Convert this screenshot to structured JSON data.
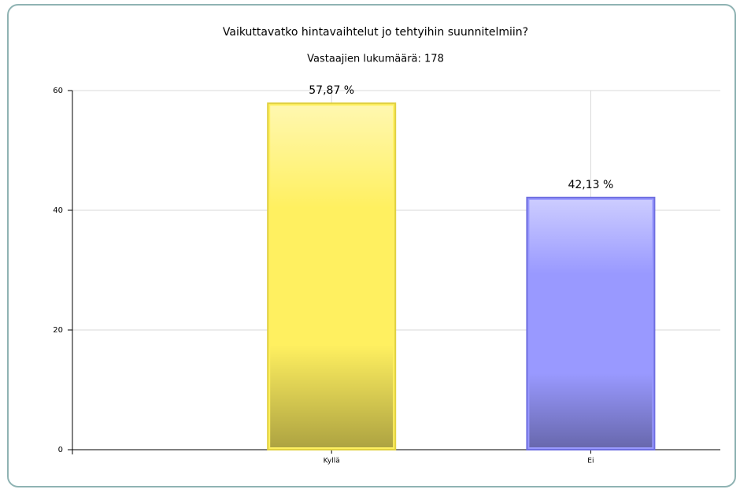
{
  "chart_data": {
    "type": "bar",
    "title": "Vaikuttavatko hintavaihtelut jo tehtyihin suunnitelmiin?",
    "subtitle": "Vastaajien lukumäärä: 178",
    "categories": [
      "Kyllä",
      "Ei"
    ],
    "values": [
      57.87,
      42.13
    ],
    "value_labels": [
      "57,87 %",
      "42,13 %"
    ],
    "colors": [
      "#fff060",
      "#9999ff"
    ],
    "edge_colors": [
      "#e0d040",
      "#6f6fe0"
    ],
    "ylim": [
      0,
      60
    ],
    "yticks": [
      0,
      20,
      40,
      60
    ],
    "grid": true
  }
}
